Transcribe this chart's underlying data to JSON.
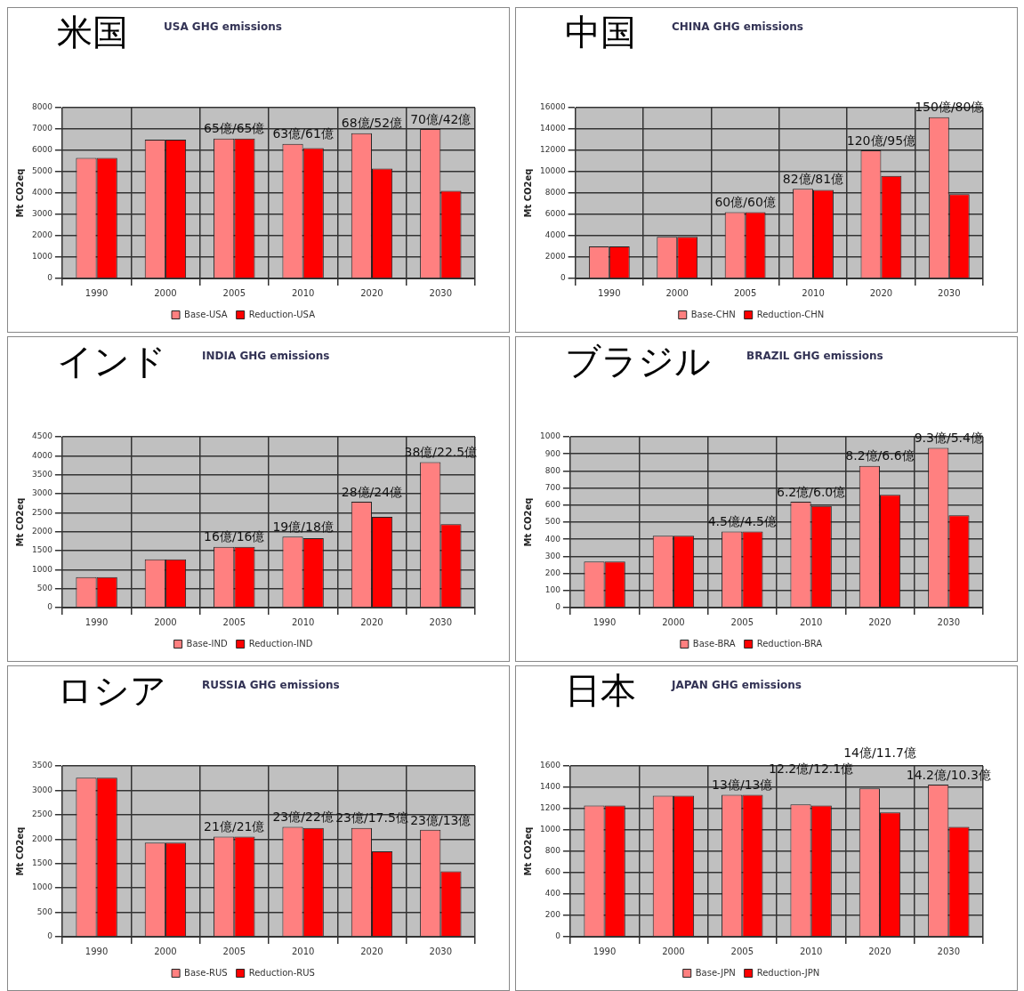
{
  "chart_data": [
    {
      "type": "bar",
      "title": "USA GHG emissions",
      "subtitle": "米国",
      "ylabel": "Mt CO2eq",
      "categories": [
        "1990",
        "2000",
        "2005",
        "2010",
        "2020",
        "2030"
      ],
      "series": [
        {
          "name": "Base-USA",
          "color": "#ff8080",
          "values": [
            5650,
            6500,
            6550,
            6300,
            6800,
            7000
          ]
        },
        {
          "name": "Reduction-USA",
          "color": "#ff0000",
          "values": [
            5650,
            6500,
            6550,
            6100,
            5150,
            4100
          ]
        }
      ],
      "ylim": [
        0,
        8000
      ],
      "yticks": [
        0,
        1000,
        2000,
        3000,
        4000,
        5000,
        6000,
        7000,
        8000
      ],
      "grid": true,
      "legend": "bottom",
      "annotations": [
        {
          "text": "65億/65億",
          "x": "2005",
          "y": 6550
        },
        {
          "text": "63億/61億",
          "x": "2010",
          "y": 6300
        },
        {
          "text": "68億/52億",
          "x": "2020",
          "y": 6800
        },
        {
          "text": "70億/42億",
          "x": "2030",
          "y": 7000
        }
      ]
    },
    {
      "type": "bar",
      "title": "CHINA GHG emissions",
      "subtitle": "中国",
      "ylabel": "Mt CO2eq",
      "categories": [
        "1990",
        "2000",
        "2005",
        "2010",
        "2020",
        "2030"
      ],
      "series": [
        {
          "name": "Base-CHN",
          "color": "#ff8080",
          "values": [
            3000,
            3900,
            6200,
            8400,
            12000,
            15100
          ]
        },
        {
          "name": "Reduction-CHN",
          "color": "#ff0000",
          "values": [
            3000,
            3900,
            6200,
            8300,
            9600,
            7900
          ]
        }
      ],
      "ylim": [
        0,
        16000
      ],
      "yticks": [
        0,
        2000,
        4000,
        6000,
        8000,
        10000,
        12000,
        14000,
        16000
      ],
      "grid": true,
      "legend": "bottom",
      "annotations": [
        {
          "text": "60億/60億",
          "x": "2005",
          "y": 6200
        },
        {
          "text": "82億/81億",
          "x": "2010",
          "y": 8400
        },
        {
          "text": "120億/95億",
          "x": "2020",
          "y": 12000
        },
        {
          "text": "150億/80億",
          "x": "2030",
          "y": 15100
        }
      ]
    },
    {
      "type": "bar",
      "title": "INDIA GHG emissions",
      "subtitle": "インド",
      "ylabel": "Mt CO2eq",
      "categories": [
        "1990",
        "2000",
        "2005",
        "2010",
        "2020",
        "2030"
      ],
      "series": [
        {
          "name": "Base-IND",
          "color": "#ff8080",
          "values": [
            800,
            1270,
            1600,
            1870,
            2790,
            3830
          ]
        },
        {
          "name": "Reduction-IND",
          "color": "#ff0000",
          "values": [
            800,
            1270,
            1600,
            1830,
            2390,
            2200
          ]
        }
      ],
      "ylim": [
        0,
        4500
      ],
      "yticks": [
        0,
        500,
        1000,
        1500,
        2000,
        2500,
        3000,
        3500,
        4000,
        4500
      ],
      "grid": true,
      "legend": "bottom",
      "annotations": [
        {
          "text": "16億/16億",
          "x": "2005",
          "y": 1600
        },
        {
          "text": "19億/18億",
          "x": "2010",
          "y": 1870
        },
        {
          "text": "28億/24億",
          "x": "2020",
          "y": 2790
        },
        {
          "text": "38億/22.5億",
          "x": "2030",
          "y": 3830
        }
      ]
    },
    {
      "type": "bar",
      "title": "BRAZIL GHG emissions",
      "subtitle": "ブラジル",
      "ylabel": "Mt CO2eq",
      "categories": [
        "1990",
        "2000",
        "2005",
        "2010",
        "2020",
        "2030"
      ],
      "series": [
        {
          "name": "Base-BRA",
          "color": "#ff8080",
          "values": [
            270,
            420,
            445,
            620,
            830,
            935
          ]
        },
        {
          "name": "Reduction-BRA",
          "color": "#ff0000",
          "values": [
            270,
            420,
            445,
            595,
            660,
            540
          ]
        }
      ],
      "ylim": [
        0,
        1000
      ],
      "yticks": [
        0,
        100,
        200,
        300,
        400,
        500,
        600,
        700,
        800,
        900,
        1000
      ],
      "grid": true,
      "legend": "bottom",
      "annotations": [
        {
          "text": "4.5億/4.5億",
          "x": "2005",
          "y": 445
        },
        {
          "text": "6.2億/6.0億",
          "x": "2010",
          "y": 620
        },
        {
          "text": "8.2億/6.6億",
          "x": "2020",
          "y": 830
        },
        {
          "text": "9.3億/5.4億",
          "x": "2030",
          "y": 935
        }
      ]
    },
    {
      "type": "bar",
      "title": "RUSSIA GHG emissions",
      "subtitle": "ロシア",
      "ylabel": "Mt CO2eq",
      "categories": [
        "1990",
        "2000",
        "2005",
        "2010",
        "2020",
        "2030"
      ],
      "series": [
        {
          "name": "Base-RUS",
          "color": "#ff8080",
          "values": [
            3260,
            1930,
            2050,
            2250,
            2230,
            2190
          ]
        },
        {
          "name": "Reduction-RUS",
          "color": "#ff0000",
          "values": [
            3260,
            1930,
            2050,
            2230,
            1750,
            1340
          ]
        }
      ],
      "ylim": [
        0,
        3500
      ],
      "yticks": [
        0,
        500,
        1000,
        1500,
        2000,
        2500,
        3000,
        3500
      ],
      "grid": true,
      "legend": "bottom",
      "annotations": [
        {
          "text": "21億/21億",
          "x": "2005",
          "y": 2050
        },
        {
          "text": "23億/22億",
          "x": "2010",
          "y": 2250
        },
        {
          "text": "23億/17.5億",
          "x": "2020",
          "y": 2230
        },
        {
          "text": "23億/13億",
          "x": "2030",
          "y": 2190
        }
      ]
    },
    {
      "type": "bar",
      "title": "JAPAN GHG emissions",
      "subtitle": "日本",
      "ylabel": "Mt CO2eq",
      "categories": [
        "1990",
        "2000",
        "2005",
        "2010",
        "2020",
        "2030"
      ],
      "series": [
        {
          "name": "Base-JPN",
          "color": "#ff8080",
          "values": [
            1230,
            1320,
            1330,
            1240,
            1390,
            1425
          ]
        },
        {
          "name": "Reduction-JPN",
          "color": "#ff0000",
          "values": [
            1230,
            1320,
            1330,
            1230,
            1165,
            1030
          ]
        }
      ],
      "ylim": [
        0,
        1600
      ],
      "yticks": [
        0,
        200,
        400,
        600,
        800,
        1000,
        1200,
        1400,
        1600
      ],
      "grid": true,
      "legend": "bottom",
      "annotations": [
        {
          "text": "13億/13億",
          "x": "2005",
          "y": 1330
        },
        {
          "text": "12.2億/12.1億",
          "x": "2010",
          "y": 1240
        },
        {
          "text": "14億/11.7億",
          "x": "2020",
          "y": 1390
        },
        {
          "text": "14.2億/10.3億",
          "x": "2030",
          "y": 1425
        }
      ]
    }
  ]
}
